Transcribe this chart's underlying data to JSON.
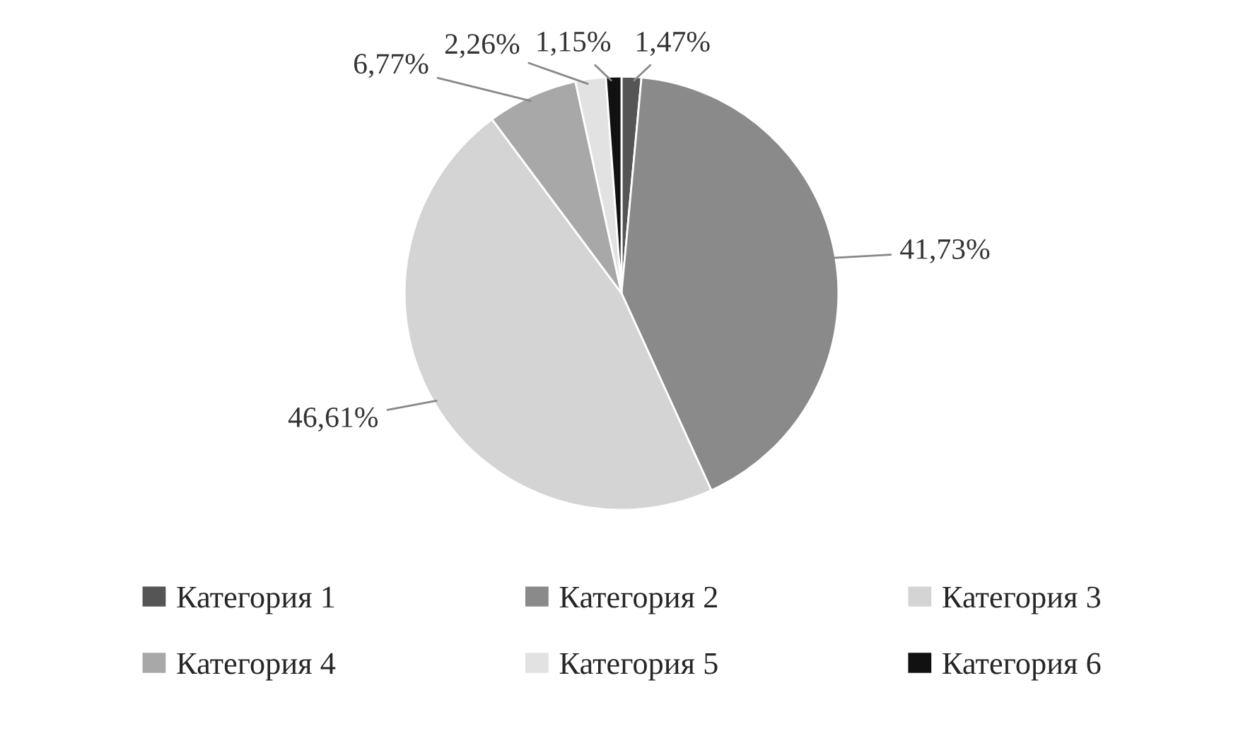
{
  "chart_data": {
    "type": "pie",
    "categories": [
      "Категория 1",
      "Категория 2",
      "Категория 3",
      "Категория 4",
      "Категория 5",
      "Категория 6"
    ],
    "values": [
      1.47,
      41.73,
      46.61,
      6.77,
      2.26,
      1.15
    ],
    "value_labels": [
      "1,47%",
      "41,73%",
      "46,61%",
      "6,77%",
      "2,26%",
      "1,15%"
    ],
    "colors": [
      "#555555",
      "#8a8a8a",
      "#d4d4d4",
      "#a8a8a8",
      "#e2e2e2",
      "#111111"
    ],
    "legend": "bottom"
  }
}
